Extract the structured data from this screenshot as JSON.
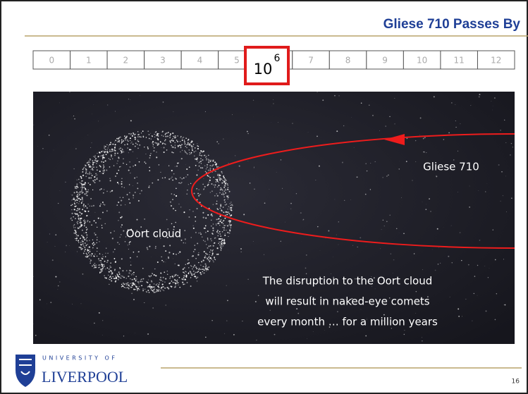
{
  "header": {
    "title": "Gliese 710 Passes By"
  },
  "scale": {
    "ticks": [
      "0",
      "1",
      "2",
      "3",
      "4",
      "5",
      "7",
      "8",
      "9",
      "10",
      "11",
      "12"
    ],
    "highlight": {
      "base": "10",
      "exponent": "6"
    }
  },
  "image": {
    "star_label": "Gliese 710",
    "cloud_label": "Oort cloud",
    "caption": [
      "The disruption to the Oort cloud",
      "will result in naked-eye comets",
      "every month … for a million years"
    ]
  },
  "footer": {
    "university": "UNIVERSITY OF",
    "name": "LIVERPOOL",
    "page": "16"
  }
}
